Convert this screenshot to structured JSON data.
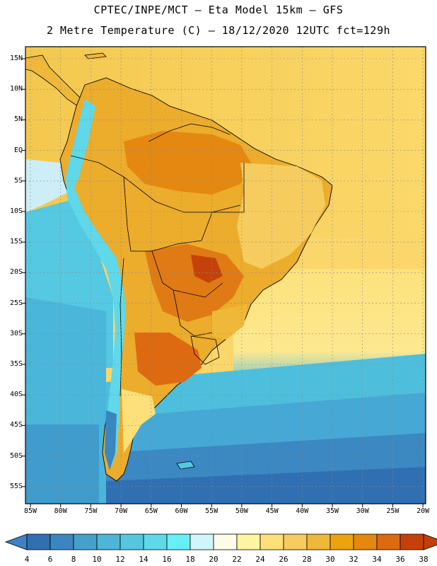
{
  "title": {
    "line1": "CPTEC/INPE/MCT —  Eta Model 15km — GFS",
    "line2": "2 Metre Temperature (C) — 18/12/2020 12UTC fct=129h"
  },
  "map": {
    "lat_labels": [
      "15N",
      "10N",
      "5N",
      "EQ",
      "5S",
      "10S",
      "15S",
      "20S",
      "25S",
      "30S",
      "35S",
      "40S",
      "45S",
      "50S",
      "55S"
    ],
    "lon_labels": [
      "85W",
      "80W",
      "75W",
      "70W",
      "65W",
      "60W",
      "55W",
      "50W",
      "45W",
      "40W",
      "35W",
      "30W",
      "25W",
      "20W"
    ]
  },
  "colorbar": {
    "labels": [
      "4",
      "6",
      "8",
      "10",
      "12",
      "14",
      "16",
      "18",
      "20",
      "22",
      "24",
      "26",
      "28",
      "30",
      "32",
      "34",
      "36",
      "38"
    ],
    "colors": [
      "#2f6fb2",
      "#3a86c0",
      "#45a0cc",
      "#4db6d8",
      "#56c6e0",
      "#5fd8ea",
      "#66f0f6",
      "#d0f6fc",
      "#fefbe8",
      "#fff4a0",
      "#fde07a",
      "#f6cc5e",
      "#f0b838",
      "#eca40e",
      "#e48812",
      "#dd6a10",
      "#c4420a"
    ],
    "low_arrow_color": "#3c82c4",
    "high_arrow_color": "#c24008"
  }
}
